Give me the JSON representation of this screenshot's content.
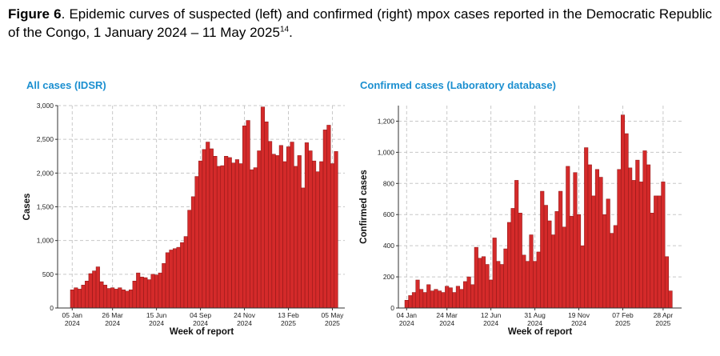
{
  "caption": {
    "label": "Figure 6",
    "text": ". Epidemic curves of suspected (left) and confirmed (right) mpox cases reported in the Democratic Republic of the Congo, 1 January 2024 – 11 May 2025",
    "ref": "14",
    "end": "."
  },
  "colors": {
    "bar": "#d42a2a",
    "bar_stroke": "#8a1515",
    "title": "#1b8fd0",
    "grid": "#c8c8c8"
  },
  "chart_data": [
    {
      "type": "bar",
      "title": "All cases (IDSR)",
      "xlabel": "Week of report",
      "ylabel": "Cases",
      "ylim": [
        0,
        3000
      ],
      "yticks": [
        0,
        500,
        1000,
        1500,
        2000,
        2500,
        3000
      ],
      "ytick_labels": [
        "0",
        "500",
        "1,000",
        "1,500",
        "2,000",
        "2,500",
        "3,000"
      ],
      "x_ticks": [
        {
          "index": 0,
          "label": [
            "05 Jan",
            "2024"
          ]
        },
        {
          "index": 11,
          "label": [
            "26 Mar",
            "2024"
          ]
        },
        {
          "index": 23,
          "label": [
            "15 Jun",
            "2024"
          ]
        },
        {
          "index": 35,
          "label": [
            "04 Sep",
            "2024"
          ]
        },
        {
          "index": 47,
          "label": [
            "24 Nov",
            "2024"
          ]
        },
        {
          "index": 59,
          "label": [
            "13 Feb",
            "2025"
          ]
        },
        {
          "index": 71,
          "label": [
            "05 May",
            "2025"
          ]
        }
      ],
      "grid": true,
      "values": [
        270,
        300,
        280,
        340,
        400,
        510,
        550,
        610,
        390,
        340,
        290,
        300,
        280,
        300,
        270,
        250,
        270,
        400,
        520,
        460,
        450,
        420,
        500,
        490,
        520,
        660,
        820,
        860,
        880,
        900,
        970,
        1060,
        1450,
        1650,
        1950,
        2180,
        2350,
        2460,
        2360,
        2250,
        2100,
        2110,
        2250,
        2230,
        2150,
        2200,
        2140,
        2700,
        2780,
        2050,
        2080,
        2330,
        2980,
        2760,
        2470,
        2280,
        2260,
        2410,
        2170,
        2390,
        2460,
        2100,
        2260,
        1780,
        2450,
        2330,
        2180,
        2020,
        2170,
        2640,
        2710,
        2140,
        2320
      ]
    },
    {
      "type": "bar",
      "title": "Confirmed cases (Laboratory database)",
      "xlabel": "Week of report",
      "ylabel": "Confirmed cases",
      "ylim": [
        0,
        1300
      ],
      "yticks": [
        0,
        200,
        400,
        600,
        800,
        1000,
        1200
      ],
      "ytick_labels": [
        "0",
        "200",
        "400",
        "600",
        "800",
        "1,000",
        "1,200"
      ],
      "x_ticks": [
        {
          "index": 0,
          "label": [
            "04 Jan",
            "2024"
          ]
        },
        {
          "index": 11,
          "label": [
            "24 Mar",
            "2024"
          ]
        },
        {
          "index": 23,
          "label": [
            "12 Jun",
            "2024"
          ]
        },
        {
          "index": 35,
          "label": [
            "31 Aug",
            "2024"
          ]
        },
        {
          "index": 47,
          "label": [
            "19 Nov",
            "2024"
          ]
        },
        {
          "index": 59,
          "label": [
            "07 Feb",
            "2025"
          ]
        },
        {
          "index": 70,
          "label": [
            "28 Apr",
            "2025"
          ]
        }
      ],
      "grid": true,
      "values": [
        50,
        80,
        100,
        180,
        120,
        100,
        150,
        110,
        120,
        110,
        100,
        140,
        130,
        100,
        140,
        120,
        170,
        200,
        150,
        390,
        320,
        330,
        280,
        180,
        450,
        300,
        280,
        380,
        550,
        640,
        820,
        610,
        340,
        300,
        470,
        300,
        360,
        750,
        660,
        560,
        470,
        620,
        750,
        520,
        910,
        590,
        870,
        600,
        400,
        1030,
        920,
        720,
        890,
        840,
        600,
        700,
        480,
        530,
        890,
        1240,
        1120,
        900,
        820,
        950,
        810,
        1010,
        920,
        610,
        720,
        720,
        810,
        330,
        110
      ]
    }
  ]
}
